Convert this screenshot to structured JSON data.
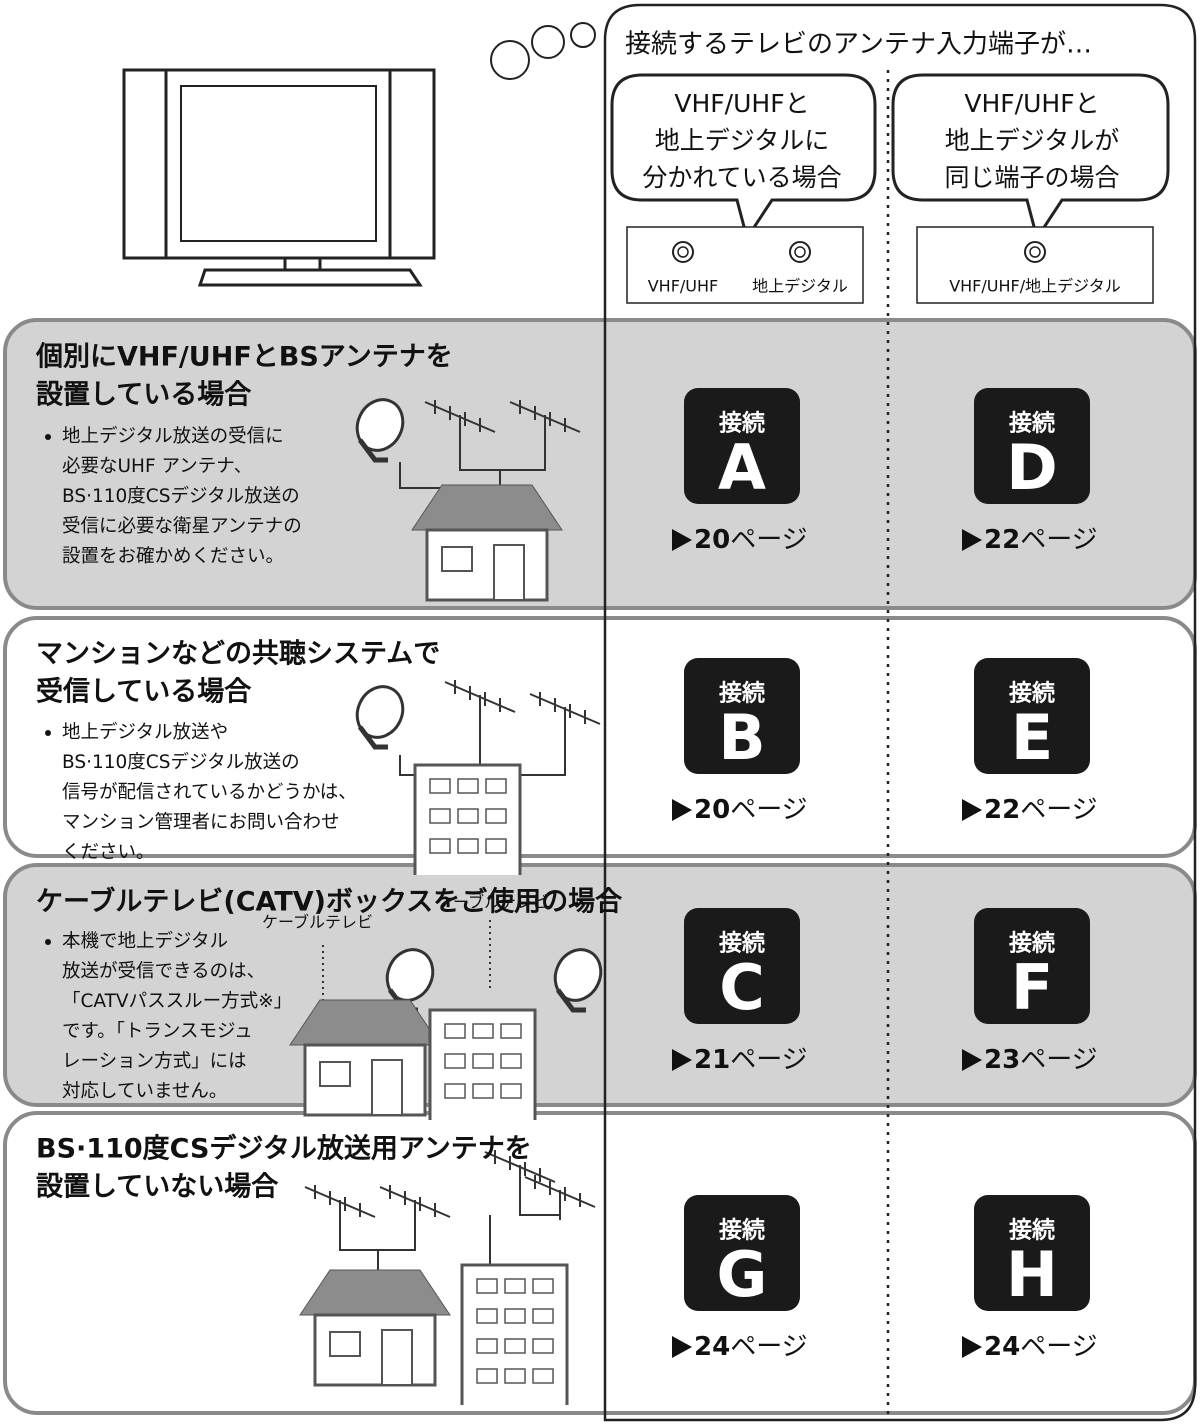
{
  "header": {
    "title": "接続するテレビのアンテナ入力端子が…"
  },
  "columns": [
    {
      "bubble": [
        "VHF/UHFと",
        "地上デジタルに",
        "分かれている場合"
      ],
      "terminals": [
        "VHF/UHF",
        "地上デジタル"
      ]
    },
    {
      "bubble": [
        "VHF/UHFと",
        "地上デジタルが",
        "同じ端子の場合"
      ],
      "terminals": [
        "VHF/UHF/地上デジタル"
      ]
    }
  ],
  "rows": [
    {
      "title": [
        "個別にVHF/UHFとBSアンテナを",
        "設置している場合"
      ],
      "notes": [
        "地上デジタル放送の受信に",
        "必要なUHF アンテナ、",
        "BS·110度CSデジタル放送の",
        "受信に必要な衛星アンテナの",
        "設置をお確かめください。"
      ],
      "connections": [
        {
          "label": "接続",
          "letter": "A",
          "page": "20",
          "suffix": "ページ"
        },
        {
          "label": "接続",
          "letter": "D",
          "page": "22",
          "suffix": "ページ"
        }
      ]
    },
    {
      "title": [
        "マンションなどの共聴システムで",
        "受信している場合"
      ],
      "notes": [
        "地上デジタル放送や",
        "BS·110度CSデジタル放送の",
        "信号が配信されているかどうかは、",
        "マンション管理者にお問い合わせ",
        "ください。"
      ],
      "connections": [
        {
          "label": "接続",
          "letter": "B",
          "page": "20",
          "suffix": "ページ"
        },
        {
          "label": "接続",
          "letter": "E",
          "page": "22",
          "suffix": "ページ"
        }
      ]
    },
    {
      "title": [
        "ケーブルテレビ(CATV)ボックスをご使用の場合"
      ],
      "notes": [
        "本機で地上デジタル",
        "放送が受信できるのは、",
        "「CATVパススルー方式※」",
        "です。「トランスモジュ",
        "レーション方式」には",
        "対応していません。"
      ],
      "illustration_labels": [
        "ケーブルテレビ",
        "ケーブルテレビ"
      ],
      "connections": [
        {
          "label": "接続",
          "letter": "C",
          "page": "21",
          "suffix": "ページ"
        },
        {
          "label": "接続",
          "letter": "F",
          "page": "23",
          "suffix": "ページ"
        }
      ]
    },
    {
      "title": [
        "BS·110度CSデジタル放送用アンテナを",
        "設置していない場合"
      ],
      "connections": [
        {
          "label": "接続",
          "letter": "G",
          "page": "24",
          "suffix": "ページ"
        },
        {
          "label": "接続",
          "letter": "H",
          "page": "24",
          "suffix": "ページ"
        }
      ]
    }
  ]
}
